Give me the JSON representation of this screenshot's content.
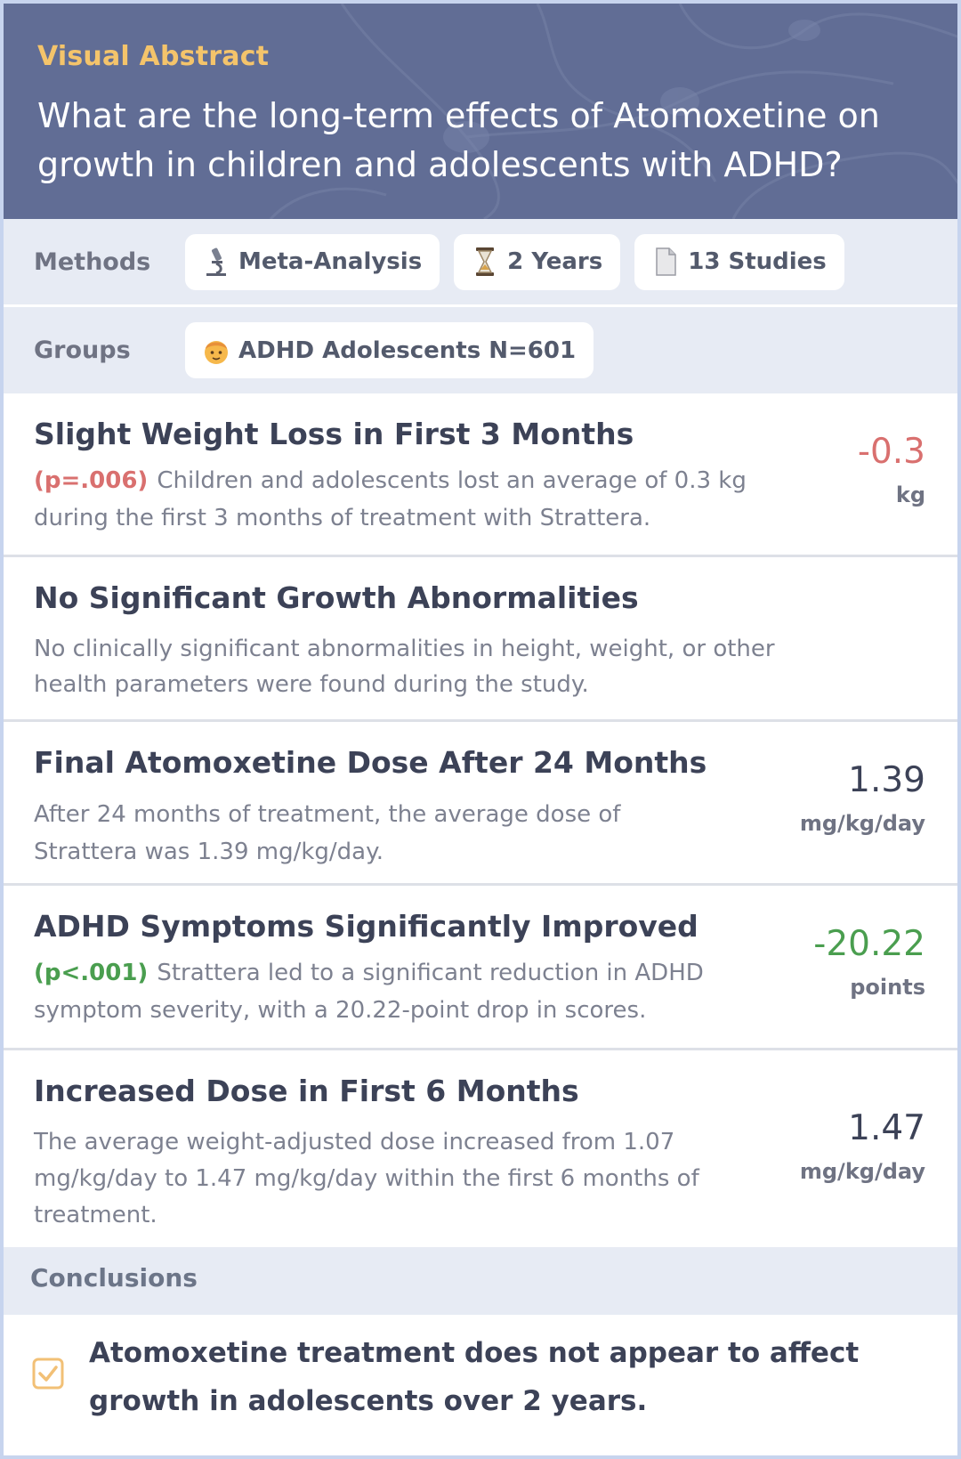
{
  "header": {
    "eyebrow": "Visual Abstract",
    "title": "What are the long-term effects of Atomoxetine on growth in children and adolescents with ADHD?"
  },
  "methods": {
    "label": "Methods",
    "pills": [
      {
        "icon": "microscope-icon",
        "label": "Meta-Analysis"
      },
      {
        "icon": "hourglass-icon",
        "label": "2 Years"
      },
      {
        "icon": "document-icon",
        "label": "13 Studies"
      }
    ]
  },
  "groups": {
    "label": "Groups",
    "pills": [
      {
        "icon": "child-icon",
        "label": "ADHD Adolescents N=601"
      }
    ]
  },
  "findings": [
    {
      "title": "Slight Weight Loss in First 3 Months",
      "pvalue": "(p=.006)",
      "desc": "Children and adolescents lost an average of 0.3 kg during the first 3 months of treatment with Strattera.",
      "value": "-0.3",
      "unit": "kg",
      "value_color": "#d9706f"
    },
    {
      "title": "No Significant Growth Abnormalities",
      "pvalue": "",
      "desc": "No clinically significant abnormalities in height, weight, or other health parameters were found during the study.",
      "value": "",
      "unit": ""
    },
    {
      "title": "Final Atomoxetine Dose After 24 Months",
      "pvalue": "",
      "desc": "After 24 months of treatment, the average dose of Strattera was 1.39 mg/kg/day.",
      "value": "1.39",
      "unit": "mg/kg/day",
      "value_color": "#3c4257"
    },
    {
      "title": "ADHD Symptoms Significantly Improved",
      "pvalue": "(p<.001)",
      "desc": "Strattera led to a significant reduction in ADHD symptom severity, with a 20.22-point drop in scores.",
      "value": "-20.22",
      "unit": "points",
      "value_color": "#4a9e4f"
    },
    {
      "title": "Increased Dose in First 6 Months",
      "pvalue": "",
      "desc": "The average weight-adjusted dose increased from 1.07 mg/kg/day to 1.47 mg/kg/day within the first 6 months of treatment.",
      "value": "1.47",
      "unit": "mg/kg/day",
      "value_color": "#3c4257"
    }
  ],
  "conclusions": {
    "label": "Conclusions",
    "text": "Atomoxetine treatment does not appear to affect growth in adolescents over 2 years."
  },
  "colors": {
    "header_bg": "#616d95",
    "eyebrow": "#f4c46b",
    "band_bg": "#e7ebf4",
    "negative": "#d9706f",
    "positive": "#4a9e4f",
    "check": "#f2c076"
  }
}
